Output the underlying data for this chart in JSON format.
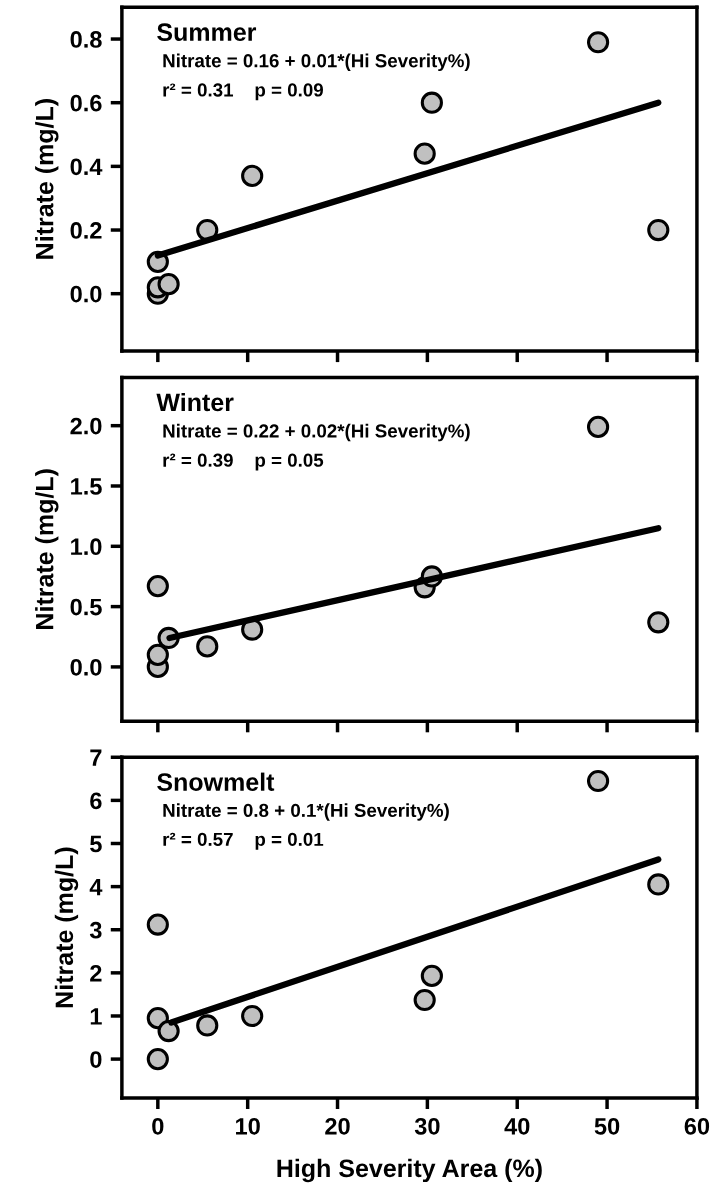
{
  "chart_data": [
    {
      "type": "scatter",
      "xlim": [
        -4,
        60
      ],
      "xticks": [
        0,
        10,
        20,
        30,
        40,
        50,
        60
      ],
      "ylim": [
        -0.18,
        0.9
      ],
      "yticks": [
        {
          "value": 0,
          "label": "0.0"
        },
        0.2,
        0.4,
        0.6,
        0.8
      ],
      "ylabel": "Nitrate (mg/L)",
      "tick_labels": "y",
      "grid": false,
      "annotations": [
        "Summer",
        "Nitrate = 0.16 + 0.01*(Hi Severity%)",
        "r² = 0.31    p = 0.09"
      ],
      "series": [
        {
          "marker": "circle",
          "color": "#c0c0c0",
          "x": [
            0,
            0,
            0,
            1.2,
            5.5,
            10.5,
            29.7,
            30.5,
            49,
            55.7
          ],
          "values": [
            0.0,
            0.02,
            0.1,
            0.03,
            0.2,
            0.37,
            0.44,
            0.6,
            0.79,
            0.2
          ]
        },
        {
          "type": "line",
          "color": "#000000",
          "x": [
            0,
            55.7
          ],
          "values": [
            0.12,
            0.6
          ]
        }
      ]
    },
    {
      "type": "scatter",
      "xlim": [
        -4,
        60
      ],
      "xticks": [
        0,
        10,
        20,
        30,
        40,
        50,
        60
      ],
      "ylim": [
        -0.45,
        2.4
      ],
      "yticks": [
        {
          "value": 0,
          "label": "0.0"
        },
        0.5,
        {
          "value": 1,
          "label": "1.0"
        },
        1.5,
        {
          "value": 2,
          "label": "2.0"
        }
      ],
      "ylabel": "Nitrate (mg/L)",
      "tick_labels": "y",
      "grid": false,
      "annotations": [
        "Winter",
        "Nitrate = 0.22 + 0.02*(Hi Severity%)",
        "r² = 0.39    p = 0.05"
      ],
      "series": [
        {
          "marker": "circle",
          "color": "#c0c0c0",
          "x": [
            0,
            0,
            0,
            1.2,
            5.5,
            10.5,
            29.7,
            30.5,
            49,
            55.7
          ],
          "values": [
            0.0,
            0.1,
            0.67,
            0.24,
            0.17,
            0.31,
            0.66,
            0.75,
            1.99,
            0.37
          ]
        },
        {
          "type": "line",
          "color": "#000000",
          "x": [
            1.3,
            55.7
          ],
          "values": [
            0.24,
            1.15
          ]
        }
      ]
    },
    {
      "type": "scatter",
      "xlim": [
        -4,
        60
      ],
      "xticks": [
        0,
        10,
        20,
        30,
        40,
        50,
        60
      ],
      "ylim": [
        -0.9,
        7
      ],
      "yticks": [
        0,
        1,
        2,
        3,
        4,
        5,
        6,
        7
      ],
      "ylabel": "Nitrate (mg/L)",
      "xlabel": "High Severity Area (%)",
      "grid": false,
      "annotations": [
        "Snowmelt",
        "Nitrate = 0.8 + 0.1*(Hi Severity%)",
        "r² = 0.57    p = 0.01"
      ],
      "series": [
        {
          "marker": "circle",
          "color": "#c0c0c0",
          "x": [
            0,
            0,
            0,
            1.2,
            5.5,
            10.5,
            29.7,
            30.5,
            49,
            55.7
          ],
          "values": [
            0.0,
            0.95,
            3.12,
            0.65,
            0.78,
            1.0,
            1.37,
            1.93,
            6.45,
            4.05
          ]
        },
        {
          "type": "line",
          "color": "#000000",
          "x": [
            1.5,
            55.7
          ],
          "values": [
            0.85,
            4.63
          ]
        }
      ]
    }
  ]
}
